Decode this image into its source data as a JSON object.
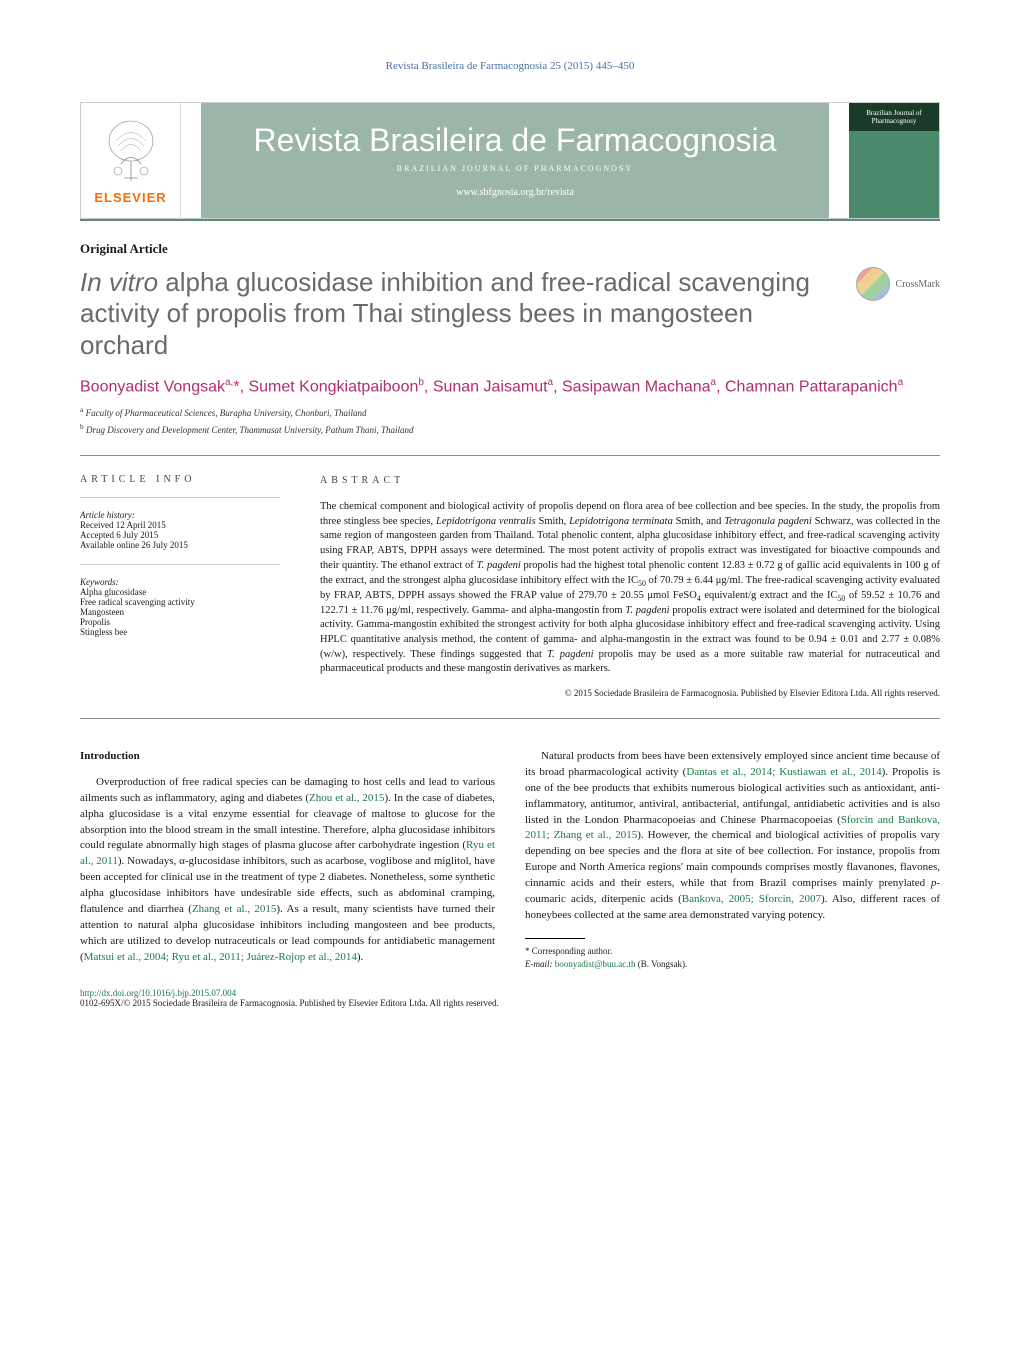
{
  "header": {
    "citation": "Revista Brasileira de Farmacognosia 25 (2015) 445–450",
    "publisher": "ELSEVIER",
    "journal_title_native": "Revista Brasileira de Farmacognosia",
    "journal_subtitle": "BRAZILIAN JOURNAL OF PHARMACOGNOSY",
    "journal_url": "www.sbfgnosia.org.br/revista",
    "cover_text": "Brazilian Journal of Pharmacognosy"
  },
  "article": {
    "type": "Original Article",
    "title_html": "In vitro alpha glucosidase inhibition and free-radical scavenging activity of propolis from Thai stingless bees in mangosteen orchard",
    "crossmark_label": "CrossMark",
    "authors_html": "Boonyadist Vongsak<sup>a,</sup>*, Sumet Kongkiatpaiboon<sup>b</sup>, Sunan Jaisamut<sup>a</sup>, Sasipawan Machana<sup>a</sup>, Chamnan Pattarapanich<sup>a</sup>",
    "affiliations": [
      "a Faculty of Pharmaceutical Sciences, Burapha University, Chonburi, Thailand",
      "b Drug Discovery and Development Center, Thammasat University, Pathum Thani, Thailand"
    ]
  },
  "info": {
    "heading": "ARTICLE INFO",
    "history_label": "Article history:",
    "history": [
      "Received 12 April 2015",
      "Accepted 6 July 2015",
      "Available online 26 July 2015"
    ],
    "keywords_label": "Keywords:",
    "keywords": [
      "Alpha glucosidase",
      "Free radical scavenging activity",
      "Mangosteen",
      "Propolis",
      "Stingless bee"
    ]
  },
  "abstract": {
    "heading": "ABSTRACT",
    "text_html": "The chemical component and biological activity of propolis depend on flora area of bee collection and bee species. In the study, the propolis from three stingless bee species, <em>Lepidotrigona ventralis</em> Smith, <em>Lepidotrigona terminata</em> Smith, and <em>Tetragonula pagdeni</em> Schwarz, was collected in the same region of mangosteen garden from Thailand. Total phenolic content, alpha glucosidase inhibitory effect, and free-radical scavenging activity using FRAP, ABTS, DPPH assays were determined. The most potent activity of propolis extract was investigated for bioactive compounds and their quantity. The ethanol extract of <em>T. pagdeni</em> propolis had the highest total phenolic content 12.83 ± 0.72 g of gallic acid equivalents in 100 g of the extract, and the strongest alpha glucosidase inhibitory effect with the IC<sub>50</sub> of 70.79 ± 6.44 μg/ml. The free-radical scavenging activity evaluated by FRAP, ABTS, DPPH assays showed the FRAP value of 279.70 ± 20.55 μmol FeSO<sub>4</sub> equivalent/g extract and the IC<sub>50</sub> of 59.52 ± 10.76 and 122.71 ± 11.76 μg/ml, respectively. Gamma- and alpha-mangostin from <em>T. pagdeni</em> propolis extract were isolated and determined for the biological activity. Gamma-mangostin exhibited the strongest activity for both alpha glucosidase inhibitory effect and free-radical scavenging activity. Using HPLC quantitative analysis method, the content of gamma- and alpha-mangostin in the extract was found to be 0.94 ± 0.01 and 2.77 ± 0.08% (w/w), respectively. These findings suggested that <em>T. pagdeni</em> propolis may be used as a more suitable raw material for nutraceutical and pharmaceutical products and these mangostin derivatives as markers.",
    "copyright": "© 2015 Sociedade Brasileira de Farmacognosia. Published by Elsevier Editora Ltda. All rights reserved."
  },
  "body": {
    "intro_heading": "Introduction",
    "p1_html": "Overproduction of free radical species can be damaging to host cells and lead to various ailments such as inflammatory, aging and diabetes (<span class='cite'>Zhou et al., 2015</span>). In the case of diabetes, alpha glucosidase is a vital enzyme essential for cleavage of maltose to glucose for the absorption into the blood stream in the small intestine. Therefore, alpha glucosidase inhibitors could regulate abnormally high stages of plasma glucose after carbohydrate ingestion (<span class='cite'>Ryu et al., 2011</span>). Nowadays, α-glucosidase inhibitors, such as acarbose, voglibose and miglitol, have been accepted for clinical use in the treatment of type 2 diabetes. Nonetheless, some synthetic alpha glucosidase inhibitors have undesirable side effects, such as abdominal cramping, flatulence and diarrhea (<span class='cite'>Zhang et al., 2015</span>). As a result, many scientists have turned their attention to natural alpha glucosidase inhibitors including mangosteen and bee products, which are utilized to develop nutraceuticals or lead compounds for antidiabetic management (<span class='cite'>Matsui et al., 2004; Ryu et al., 2011; Juárez-Rojop et al., 2014</span>).",
    "p2_html": "Natural products from bees have been extensively employed since ancient time because of its broad pharmacological activity (<span class='cite'>Dantas et al., 2014; Kustiawan et al., 2014</span>). Propolis is one of the bee products that exhibits numerous biological activities such as antioxidant, anti-inflammatory, antitumor, antiviral, antibacterial, antifungal, antidiabetic activities and is also listed in the London Pharmacopoeias and Chinese Pharmacopoeias (<span class='cite'>Sforcin and Bankova, 2011; Zhang et al., 2015</span>). However, the chemical and biological activities of propolis vary depending on bee species and the flora at site of bee collection. For instance, propolis from Europe and North America regions' main compounds comprises mostly flavanones, flavones, cinnamic acids and their esters, while that from Brazil comprises mainly prenylated <em>p</em>-coumaric acids, diterpenic acids (<span class='cite'>Bankova, 2005; Sforcin, 2007</span>). Also, different races of honeybees collected at the same area demonstrated varying potency."
  },
  "footnotes": {
    "corr": "* Corresponding author.",
    "email_label": "E-mail:",
    "email": "boonyadist@buu.ac.th",
    "email_name": "(B. Vongsak)."
  },
  "footer": {
    "doi": "http://dx.doi.org/10.1016/j.bjp.2015.07.004",
    "issn": "0102-695X/© 2015 Sociedade Brasileira de Farmacognosia. Published by Elsevier Editora Ltda. All rights reserved."
  },
  "colors": {
    "link": "#4a6fa5",
    "accent": "#5a8a7a",
    "author": "#ae316c",
    "cite": "#1a7a4a",
    "elsevier": "#ff6b00"
  }
}
